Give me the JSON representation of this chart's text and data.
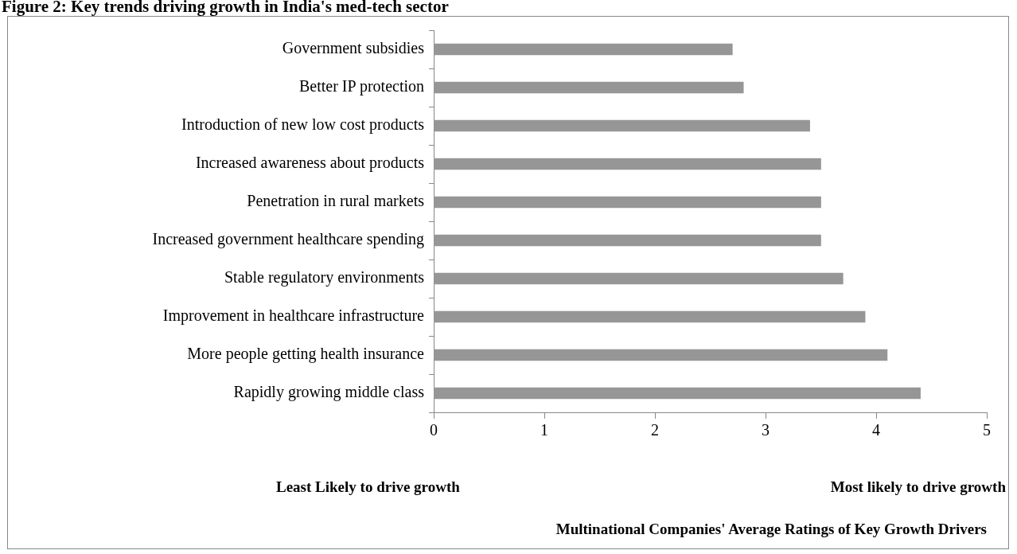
{
  "chart_data": {
    "type": "bar",
    "orientation": "horizontal",
    "title": "Figure 2: Key trends driving growth in India's med-tech sector",
    "categories": [
      "Government subsidies",
      "Better IP protection",
      "Introduction of new low cost products",
      "Increased awareness about products",
      "Penetration in rural markets",
      "Increased government healthcare spending",
      "Stable regulatory environments",
      "Improvement in healthcare infrastructure",
      "More people getting health insurance",
      "Rapidly growing middle class"
    ],
    "values": [
      2.7,
      2.8,
      3.4,
      3.5,
      3.5,
      3.5,
      3.7,
      3.9,
      4.1,
      4.4
    ],
    "color": "#969696",
    "xlim": [
      0,
      5
    ],
    "xticks": [
      0,
      1,
      2,
      3,
      4,
      5
    ],
    "annotations": [
      "Least Likely to drive growth",
      "Most likely to drive growth",
      "Multinational Companies' Average Ratings of Key Growth Drivers"
    ],
    "grid": false,
    "legend": false
  }
}
